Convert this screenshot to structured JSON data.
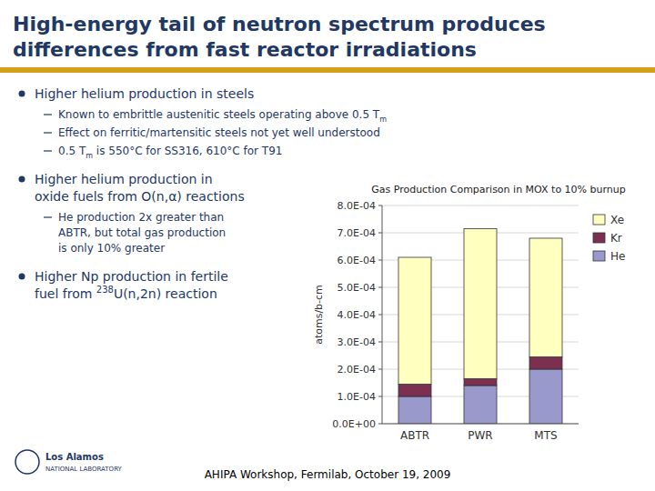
{
  "title": {
    "lines": [
      "High-energy tail of neutron spectrum produces",
      "differences from fast reactor irradiations"
    ],
    "color": "#1F3864"
  },
  "rule": {
    "color": "#D4A017"
  },
  "body": {
    "color": "#1F3864",
    "bullets": [
      {
        "lines": [
          {
            "text": "Higher helium production in steels"
          }
        ],
        "items": [
          {
            "lines": [
              {
                "text": "Known to embrittle austenitic steels operating above 0.5 T",
                "subscript": "m"
              }
            ]
          },
          {
            "lines": [
              {
                "text": "Effect on ferritic/martensitic steels not yet well understood"
              }
            ]
          },
          {
            "lines": [
              {
                "text": "0.5 T",
                "subscript": "m",
                "after": " is 550°C for SS316, 610°C for T91"
              }
            ]
          }
        ]
      },
      {
        "lines": [
          {
            "text": "Higher helium production in"
          },
          {
            "text": "oxide fuels from O(n,α) reactions"
          }
        ],
        "items": [
          {
            "lines": [
              {
                "text": "He production 2x greater than"
              },
              {
                "text": "ABTR, but total gas production"
              },
              {
                "text": "is only 10% greater"
              }
            ]
          }
        ]
      },
      {
        "lines": [
          {
            "text": "Higher Np production in fertile"
          },
          {
            "text": "fuel from ",
            "superscript": "238",
            "after": "U(n,2n) reaction"
          }
        ],
        "items": []
      }
    ]
  },
  "footer": "AHIPA Workshop, Fermilab, October 19, 2009",
  "logo": {
    "color": "#1F3864",
    "lines": [
      "Los Alamos",
      "NATIONAL LABORATORY"
    ]
  },
  "chart_data": {
    "type": "bar",
    "stacked": true,
    "title": "Gas Production Comparison in MOX to 10% burnup",
    "y_label": "atoms/b-cm",
    "categories": [
      "ABTR",
      "PWR",
      "MTS"
    ],
    "series": [
      {
        "name": "He",
        "color": "#9999CC",
        "values": [
          0.0001,
          0.00014,
          0.0002
        ]
      },
      {
        "name": "Kr",
        "color": "#7B3050",
        "values": [
          4.5e-05,
          2.5e-05,
          4.5e-05
        ]
      },
      {
        "name": "Xe",
        "color": "#FFFFC0",
        "values": [
          0.000465,
          0.00055,
          0.000435
        ]
      }
    ],
    "ylim": [
      0,
      0.0008
    ],
    "yticks": [
      {
        "value": 0,
        "label": "0.0E+00"
      },
      {
        "value": 0.0001,
        "label": "1.0E-04"
      },
      {
        "value": 0.0002,
        "label": "2.0E-04"
      },
      {
        "value": 0.0003,
        "label": "3.0E-04"
      },
      {
        "value": 0.0004,
        "label": "4.0E-04"
      },
      {
        "value": 0.0005,
        "label": "5.0E-04"
      },
      {
        "value": 0.0006,
        "label": "6.0E-04"
      },
      {
        "value": 0.0007,
        "label": "7.0E-04"
      },
      {
        "value": 0.0008,
        "label": "8.0E-04"
      }
    ],
    "grid": true,
    "legend": "right"
  }
}
